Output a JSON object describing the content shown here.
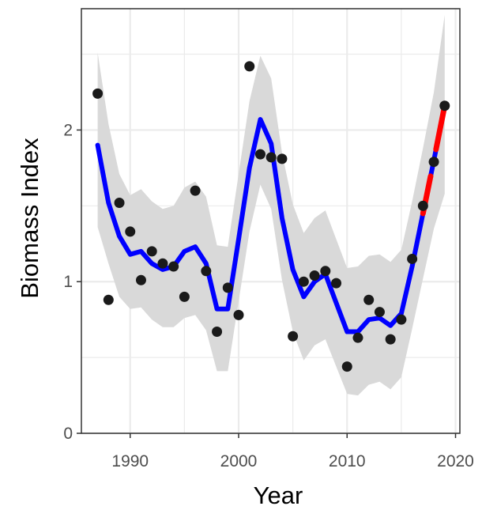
{
  "chart_data": {
    "type": "line",
    "xlabel": "Year",
    "ylabel": "Biomass Index",
    "xlim": [
      1985.5,
      2020.4
    ],
    "ylim": [
      0,
      2.8
    ],
    "xticks": [
      1990,
      2000,
      2010,
      2020
    ],
    "xtick_labels": [
      "1990",
      "2000",
      "2010",
      "2020"
    ],
    "yticks": [
      0,
      1,
      2
    ],
    "ytick_labels": [
      "0",
      "1",
      "2"
    ],
    "grid": true,
    "points": {
      "x": [
        1987,
        1988,
        1989,
        1990,
        1991,
        1992,
        1993,
        1994,
        1995,
        1996,
        1997,
        1998,
        1999,
        2000,
        2001,
        2002,
        2003,
        2004,
        2005,
        2006,
        2007,
        2008,
        2009,
        2010,
        2011,
        2012,
        2013,
        2014,
        2015,
        2016,
        2017,
        2018,
        2019
      ],
      "y": [
        2.24,
        0.88,
        1.52,
        1.33,
        1.01,
        1.2,
        1.12,
        1.1,
        0.9,
        1.6,
        1.07,
        0.67,
        0.96,
        0.78,
        2.42,
        1.84,
        1.82,
        1.81,
        0.64,
        1.0,
        1.04,
        1.07,
        0.99,
        0.44,
        0.63,
        0.88,
        0.8,
        0.62,
        0.75,
        1.15,
        1.5,
        1.79,
        2.16
      ]
    },
    "trend": {
      "x": [
        1987,
        1988,
        1989,
        1990,
        1991,
        1992,
        1993,
        1994,
        1995,
        1996,
        1997,
        1998,
        1999,
        2000,
        2001,
        2002,
        2003,
        2004,
        2005,
        2006,
        2007,
        2008,
        2009,
        2010,
        2011,
        2012,
        2013,
        2014,
        2015,
        2016,
        2017,
        2018,
        2019
      ],
      "y": [
        1.9,
        1.52,
        1.3,
        1.18,
        1.2,
        1.12,
        1.08,
        1.1,
        1.2,
        1.23,
        1.12,
        0.82,
        0.82,
        1.28,
        1.75,
        2.07,
        1.91,
        1.42,
        1.08,
        0.9,
        1.0,
        1.05,
        0.86,
        0.67,
        0.67,
        0.75,
        0.76,
        0.71,
        0.79,
        1.1,
        1.45,
        1.8,
        2.16
      ],
      "lower": [
        1.36,
        1.12,
        0.9,
        0.82,
        0.83,
        0.75,
        0.7,
        0.7,
        0.76,
        0.78,
        0.68,
        0.41,
        0.41,
        0.87,
        1.33,
        1.64,
        1.48,
        1.01,
        0.67,
        0.48,
        0.58,
        0.62,
        0.44,
        0.26,
        0.25,
        0.32,
        0.34,
        0.29,
        0.37,
        0.69,
        1.02,
        1.35,
        1.58
      ],
      "upper": [
        2.51,
        2.04,
        1.71,
        1.57,
        1.61,
        1.53,
        1.48,
        1.5,
        1.62,
        1.66,
        1.56,
        1.24,
        1.23,
        1.71,
        2.19,
        2.49,
        2.34,
        1.85,
        1.51,
        1.32,
        1.42,
        1.47,
        1.28,
        1.09,
        1.1,
        1.17,
        1.18,
        1.13,
        1.21,
        1.53,
        1.88,
        2.25,
        2.76
      ]
    },
    "highlight_segments": [
      {
        "x": [
          2017,
          2017.7
        ]
      },
      {
        "x": [
          2018.2,
          2019
        ]
      }
    ],
    "colors": {
      "trend": "#0000ff",
      "highlight": "#ff0000",
      "points": "#1a1a1a",
      "ribbon": "#d9d9d9",
      "grid": "#ebebeb",
      "panel_border": "#333333"
    }
  }
}
